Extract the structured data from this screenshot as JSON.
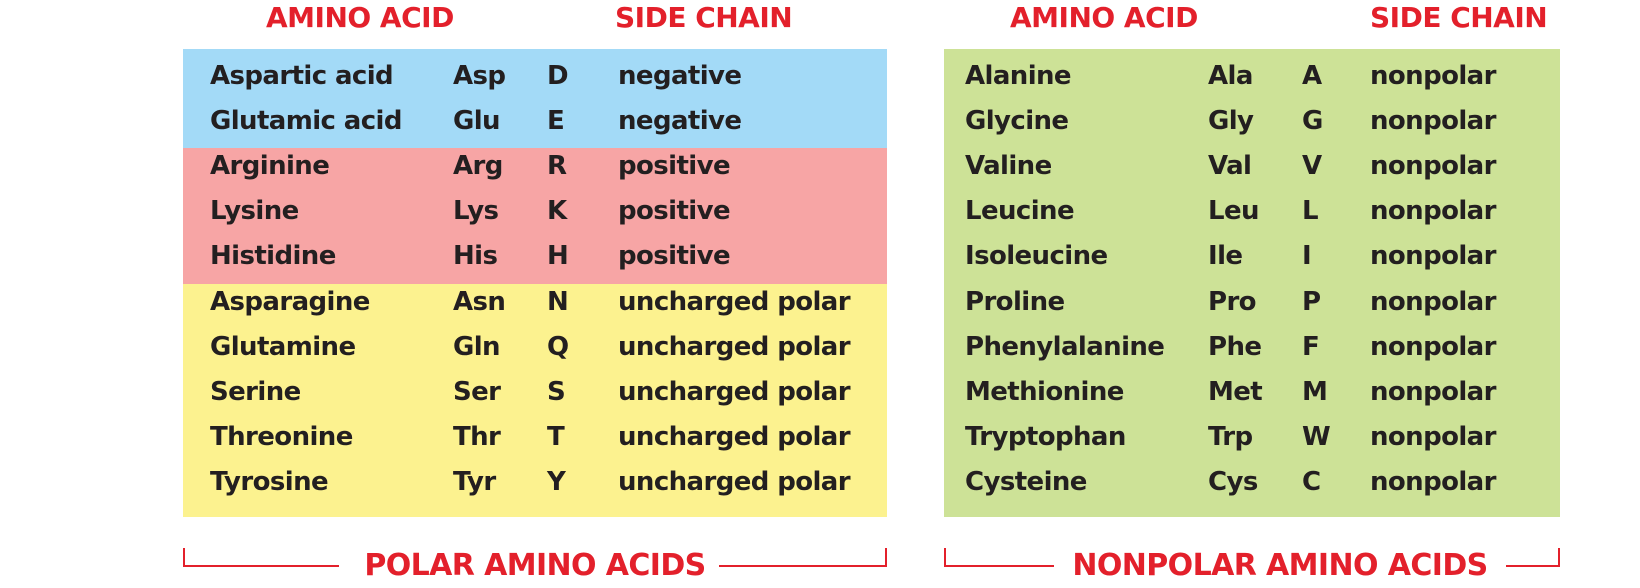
{
  "colors": {
    "header_red": "#e3202b",
    "negative_bg": "#a3daf7",
    "positive_bg": "#f7a5a5",
    "uncharged_bg": "#fcf28f",
    "nonpolar_bg": "#cde297",
    "text": "#231f20"
  },
  "polar": {
    "header_amino": "AMINO ACID",
    "header_side": "SIDE CHAIN",
    "footer_label": "POLAR AMINO ACIDS",
    "rows": [
      {
        "name": "Aspartic acid",
        "abbr": "Asp",
        "code": "D",
        "side": "negative"
      },
      {
        "name": "Glutamic acid",
        "abbr": "Glu",
        "code": "E",
        "side": "negative"
      },
      {
        "name": "Arginine",
        "abbr": "Arg",
        "code": "R",
        "side": "positive"
      },
      {
        "name": "Lysine",
        "abbr": "Lys",
        "code": "K",
        "side": "positive"
      },
      {
        "name": "Histidine",
        "abbr": "His",
        "code": "H",
        "side": "positive"
      },
      {
        "name": "Asparagine",
        "abbr": "Asn",
        "code": "N",
        "side": "uncharged polar"
      },
      {
        "name": "Glutamine",
        "abbr": "Gln",
        "code": "Q",
        "side": "uncharged polar"
      },
      {
        "name": "Serine",
        "abbr": "Ser",
        "code": "S",
        "side": "uncharged polar"
      },
      {
        "name": "Threonine",
        "abbr": "Thr",
        "code": "T",
        "side": "uncharged polar"
      },
      {
        "name": "Tyrosine",
        "abbr": "Tyr",
        "code": "Y",
        "side": "uncharged polar"
      }
    ]
  },
  "nonpolar": {
    "header_amino": "AMINO ACID",
    "header_side": "SIDE CHAIN",
    "footer_label": "NONPOLAR AMINO ACIDS",
    "rows": [
      {
        "name": "Alanine",
        "abbr": "Ala",
        "code": "A",
        "side": "nonpolar"
      },
      {
        "name": "Glycine",
        "abbr": "Gly",
        "code": "G",
        "side": "nonpolar"
      },
      {
        "name": "Valine",
        "abbr": "Val",
        "code": "V",
        "side": "nonpolar"
      },
      {
        "name": "Leucine",
        "abbr": "Leu",
        "code": "L",
        "side": "nonpolar"
      },
      {
        "name": "Isoleucine",
        "abbr": "Ile",
        "code": "I",
        "side": "nonpolar"
      },
      {
        "name": "Proline",
        "abbr": "Pro",
        "code": "P",
        "side": "nonpolar"
      },
      {
        "name": "Phenylalanine",
        "abbr": "Phe",
        "code": "F",
        "side": "nonpolar"
      },
      {
        "name": "Methionine",
        "abbr": "Met",
        "code": "M",
        "side": "nonpolar"
      },
      {
        "name": "Tryptophan",
        "abbr": "Trp",
        "code": "W",
        "side": "nonpolar"
      },
      {
        "name": "Cysteine",
        "abbr": "Cys",
        "code": "C",
        "side": "nonpolar"
      }
    ]
  }
}
